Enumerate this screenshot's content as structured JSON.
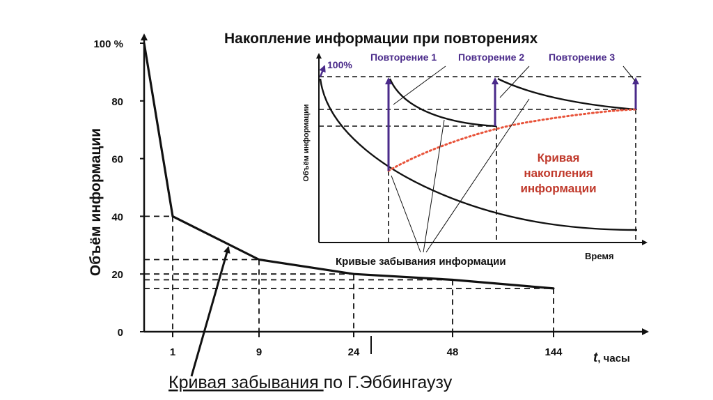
{
  "colors": {
    "ink": "#111111",
    "accent_purple": "#4a2a8a",
    "accent_red": "#c0392b",
    "dotted_orange": "#e8533a"
  },
  "main_chart": {
    "ylabel": "Объём информации",
    "xlabel_t": "t",
    "xlabel_units": ", часы",
    "y_ticks": [
      {
        "v": 100,
        "label": "100 %"
      },
      {
        "v": 80,
        "label": "80"
      },
      {
        "v": 60,
        "label": "60"
      },
      {
        "v": 40,
        "label": "40"
      },
      {
        "v": 20,
        "label": "20"
      },
      {
        "v": 0,
        "label": "0"
      }
    ],
    "x_ticks": [
      "1",
      "9",
      "24",
      "48",
      "144"
    ],
    "caption_underlined": "Кривая забывания ",
    "caption_rest": "по Г.Эббингаузу"
  },
  "inset_chart": {
    "title": "Накопление информации при повторениях",
    "ylabel": "Объём информации",
    "xlabel": "Время",
    "top_label": "100%",
    "repetitions": [
      "Повторение 1",
      "Повторение 2",
      "Повторение 3"
    ],
    "accumulation_label": [
      "Кривая",
      "накопления",
      "информации"
    ],
    "forgetting_label": "Кривые забывания информации"
  },
  "chart_data": [
    {
      "type": "line",
      "title": "",
      "ylabel": "Объём информации",
      "xlabel": "t, часы",
      "categories": [
        "0",
        "1",
        "9",
        "24",
        "48",
        "144"
      ],
      "series": [
        {
          "values": [
            100,
            40,
            25,
            20,
            18,
            15
          ]
        }
      ],
      "ylim": [
        0,
        100
      ],
      "grid": false,
      "reference_levels": [
        40,
        25,
        20,
        18,
        15
      ]
    },
    {
      "type": "line",
      "title": "Накопление информации при повторениях",
      "ylabel": "Объём информации",
      "xlabel": "Время",
      "annotations": [
        "100%",
        "Повторение 1",
        "Повторение 2",
        "Повторение 3",
        "Кривая накопления информации",
        "Кривые забывания информации"
      ]
    }
  ]
}
